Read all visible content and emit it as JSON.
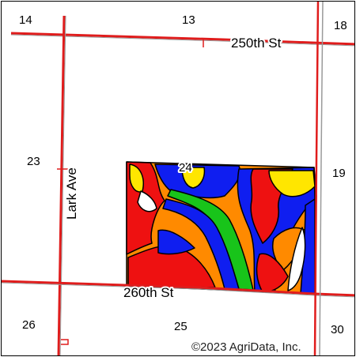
{
  "map": {
    "sections": [
      "14",
      "13",
      "18",
      "23",
      "24",
      "19",
      "26",
      "25",
      "30"
    ],
    "roads": [
      "250th St",
      "Lark Ave",
      "260th St"
    ],
    "credit": "©2023 AgriData, Inc.",
    "colors": {
      "road_outer": "#e01c1c",
      "road_inner": "#9a9a9a",
      "soil_red": "#ee1111",
      "soil_blue": "#0f1ef0",
      "soil_orange": "#ff8a00",
      "soil_yellow": "#ffe600",
      "soil_green": "#18c41a",
      "outline": "#000000"
    }
  }
}
